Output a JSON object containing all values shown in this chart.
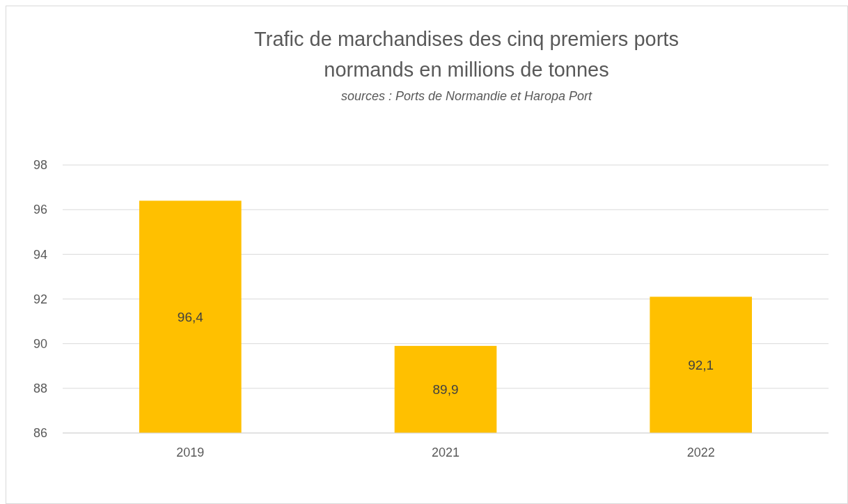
{
  "chart_data": {
    "type": "bar",
    "title": "Trafic de marchandises des cinq premiers ports normands en millions de tonnes",
    "subtitle": "sources : Ports de Normandie et Haropa Port",
    "categories": [
      "2019",
      "2021",
      "2022"
    ],
    "values": [
      96.4,
      89.9,
      92.1
    ],
    "value_labels": [
      "96,4",
      "89,9",
      "92,1"
    ],
    "color": "#ffc000",
    "ylim": [
      86,
      98
    ],
    "yticks": [
      86,
      88,
      90,
      92,
      94,
      96,
      98
    ],
    "grid": "y"
  }
}
